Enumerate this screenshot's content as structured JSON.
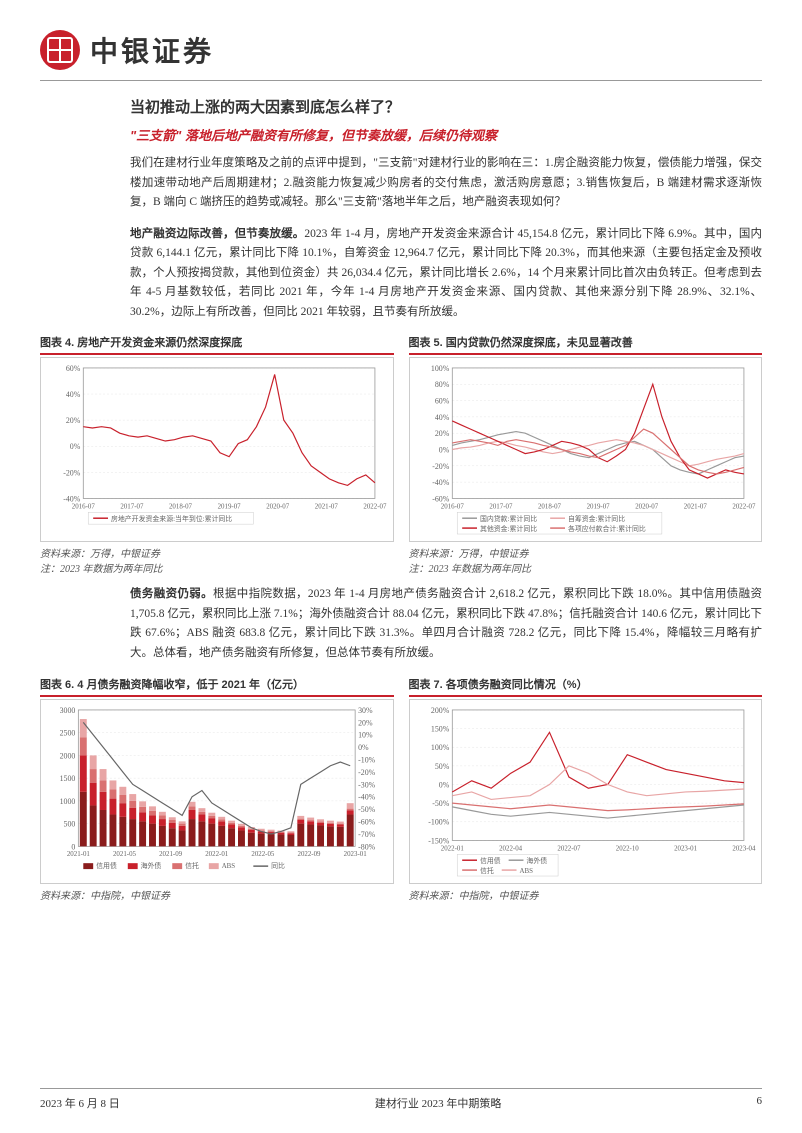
{
  "brand": "中银证券",
  "section_title": "当初推动上涨的两大因素到底怎么样了？",
  "subtitle": "\"三支箭\" 落地后地产融资有所修复，但节奏放缓，后续仍待观察",
  "para1": "我们在建材行业年度策略及之前的点评中提到，\"三支箭\"对建材行业的影响在三：1.房企融资能力恢复，偿债能力增强，保交楼加速带动地产后周期建材；2.融资能力恢复减少购房者的交付焦虑，激活购房意愿；3.销售恢复后，B 端建材需求逐渐恢复，B 端向 C 端挤压的趋势或减轻。那么\"三支箭\"落地半年之后，地产融资表现如何？",
  "para2_lead": "地产融资边际改善，但节奏放缓。",
  "para2": "2023 年 1-4 月，房地产开发资金来源合计 45,154.8 亿元，累计同比下降 6.9%。其中，国内贷款 6,144.1 亿元，累计同比下降 10.1%，自筹资金 12,964.7 亿元，累计同比下降 20.3%，而其他来源（主要包括定金及预收款，个人预按揭贷款，其他到位资金）共 26,034.4 亿元，累计同比增长 2.6%，14 个月来累计同比首次由负转正。但考虑到去年 4-5 月基数较低，若同比 2021 年，今年 1-4 月房地产开发资金来源、国内贷款、其他来源分别下降 28.9%、32.1%、30.2%，边际上有所改善，但同比 2021 年较弱，且节奏有所放缓。",
  "para3_lead": "债务融资仍弱。",
  "para3": "根据中指院数据，2023 年 1-4 月房地产债务融资合计 2,618.2 亿元，累积同比下跌 18.0%。其中信用债融资 1,705.8 亿元，累积同比上涨 7.1%；海外债融资合计 88.04 亿元，累积同比下跌 47.8%；信托融资合计 140.6 亿元，累计同比下跌 67.6%；ABS 融资 683.8 亿元，累计同比下跌 31.3%。单四月合计融资 728.2 亿元，同比下降 15.4%，降幅较三月略有扩大。总体看，地产债务融资有所修复，但总体节奏有所放缓。",
  "chart4": {
    "title": "图表 4. 房地产开发资金来源仍然深度探底",
    "source": "资料来源：万得，中银证券",
    "note": "注：2023 年数据为两年同比",
    "type": "line",
    "ylim": [
      -40,
      60
    ],
    "ytick_step": 20,
    "x_labels": [
      "2016-07",
      "2017-07",
      "2018-07",
      "2019-07",
      "2020-07",
      "2021-07",
      "2022-07"
    ],
    "series": [
      {
        "name": "房地产开发资金来源:当年到位:累计同比",
        "color": "#c8202b",
        "values": [
          15,
          14,
          15,
          14,
          10,
          8,
          7,
          8,
          6,
          4,
          5,
          7,
          8,
          6,
          4,
          -5,
          -8,
          2,
          5,
          15,
          30,
          55,
          20,
          10,
          -5,
          -15,
          -20,
          -25,
          -28,
          -30,
          -25,
          -22,
          -28
        ]
      }
    ],
    "grid_color": "#e5e5e5",
    "label_fontsize": 8
  },
  "chart5": {
    "title": "图表 5. 国内贷款仍然深度探底，未见显著改善",
    "source": "资料来源：万得，中银证券",
    "note": "注：2023 年数据为两年同比",
    "type": "line",
    "ylim": [
      -60,
      100
    ],
    "ytick_step": 20,
    "x_labels": [
      "2016-07",
      "2017-07",
      "2018-07",
      "2019-07",
      "2020-07",
      "2021-07",
      "2022-07"
    ],
    "series": [
      {
        "name": "国内贷款:累计同比",
        "color": "#999999",
        "values": [
          5,
          8,
          10,
          12,
          15,
          18,
          20,
          22,
          20,
          15,
          10,
          5,
          0,
          -5,
          -8,
          -10,
          -5,
          0,
          5,
          8,
          10,
          5,
          0,
          -10,
          -20,
          -25,
          -28,
          -30,
          -25,
          -20,
          -15,
          -10,
          -8
        ]
      },
      {
        "name": "自筹资金:累计同比",
        "color": "#e8a5a5",
        "values": [
          0,
          2,
          3,
          5,
          8,
          10,
          8,
          5,
          3,
          0,
          -3,
          -5,
          -3,
          0,
          3,
          5,
          8,
          10,
          12,
          10,
          8,
          5,
          0,
          -5,
          -10,
          -15,
          -20,
          -18,
          -15,
          -12,
          -10,
          -8,
          -5
        ]
      },
      {
        "name": "其他资金:累计同比",
        "color": "#c8202b",
        "values": [
          35,
          30,
          25,
          20,
          15,
          10,
          5,
          0,
          -5,
          -3,
          0,
          5,
          10,
          8,
          5,
          0,
          -10,
          -15,
          -8,
          0,
          20,
          50,
          80,
          40,
          10,
          -10,
          -25,
          -30,
          -35,
          -30,
          -25,
          -28,
          -30
        ]
      },
      {
        "name": "各项应付款合计:累计同比",
        "color": "#d97070",
        "values": [
          8,
          10,
          12,
          10,
          8,
          5,
          10,
          12,
          10,
          8,
          5,
          3,
          0,
          -3,
          -5,
          -8,
          -10,
          -5,
          0,
          5,
          15,
          25,
          20,
          10,
          0,
          -10,
          -20,
          -25,
          -28,
          -30,
          -28,
          -25,
          -22
        ]
      }
    ],
    "grid_color": "#e5e5e5",
    "label_fontsize": 8
  },
  "chart6": {
    "title": "图表 6. 4 月债务融资降幅收窄，低于 2021 年（亿元）",
    "source": "资料来源：中指院，中银证券",
    "type": "bar_line",
    "ylim_left": [
      0,
      3000
    ],
    "ytick_left_step": 500,
    "ylim_right": [
      -80,
      30
    ],
    "ytick_right_step": 10,
    "x_labels": [
      "2021-01",
      "2021-05",
      "2021-09",
      "2022-01",
      "2022-05",
      "2022-09",
      "2023-01"
    ],
    "stacks": [
      {
        "name": "信用债",
        "color": "#8a1c1c"
      },
      {
        "name": "海外债",
        "color": "#c8202b"
      },
      {
        "name": "信托",
        "color": "#d97070"
      },
      {
        "name": "ABS",
        "color": "#e8a5a5"
      }
    ],
    "bars": [
      [
        1200,
        800,
        400,
        400
      ],
      [
        900,
        500,
        300,
        300
      ],
      [
        800,
        400,
        250,
        250
      ],
      [
        700,
        350,
        200,
        200
      ],
      [
        650,
        300,
        180,
        180
      ],
      [
        600,
        250,
        150,
        150
      ],
      [
        550,
        200,
        120,
        120
      ],
      [
        500,
        180,
        100,
        100
      ],
      [
        450,
        150,
        80,
        80
      ],
      [
        400,
        120,
        60,
        60
      ],
      [
        350,
        100,
        50,
        50
      ],
      [
        600,
        200,
        80,
        100
      ],
      [
        550,
        150,
        60,
        80
      ],
      [
        500,
        120,
        50,
        70
      ],
      [
        450,
        100,
        40,
        60
      ],
      [
        400,
        80,
        35,
        50
      ],
      [
        350,
        70,
        30,
        45
      ],
      [
        300,
        60,
        25,
        40
      ],
      [
        280,
        50,
        22,
        35
      ],
      [
        270,
        45,
        20,
        32
      ],
      [
        260,
        40,
        18,
        30
      ],
      [
        250,
        38,
        16,
        28
      ],
      [
        500,
        80,
        30,
        60
      ],
      [
        480,
        70,
        28,
        55
      ],
      [
        460,
        60,
        25,
        50
      ],
      [
        440,
        55,
        22,
        48
      ],
      [
        430,
        50,
        20,
        45
      ],
      [
        700,
        90,
        40,
        120
      ]
    ],
    "line": {
      "name": "同比",
      "color": "#666666",
      "values": [
        20,
        10,
        0,
        -10,
        -20,
        -30,
        -35,
        -40,
        -45,
        -50,
        -55,
        -40,
        -35,
        -45,
        -50,
        -55,
        -60,
        -65,
        -68,
        -70,
        -68,
        -65,
        -30,
        -25,
        -20,
        -15,
        -12,
        -15
      ]
    },
    "grid_color": "#e5e5e5",
    "label_fontsize": 8
  },
  "chart7": {
    "title": "图表 7. 各项债务融资同比情况（%）",
    "source": "资料来源：中指院，中银证券",
    "type": "line",
    "ylim": [
      -150,
      200
    ],
    "ytick_step": 50,
    "x_labels": [
      "2022-01",
      "2022-04",
      "2022-07",
      "2022-10",
      "2023-01",
      "2023-04"
    ],
    "series": [
      {
        "name": "信用债",
        "color": "#c8202b",
        "values": [
          -20,
          10,
          -10,
          30,
          60,
          140,
          20,
          -10,
          0,
          80,
          60,
          40,
          30,
          20,
          10,
          5
        ]
      },
      {
        "name": "海外债",
        "color": "#999999",
        "values": [
          -60,
          -70,
          -80,
          -85,
          -80,
          -75,
          -80,
          -85,
          -90,
          -85,
          -80,
          -75,
          -70,
          -65,
          -60,
          -55
        ]
      },
      {
        "name": "信托",
        "color": "#d97070",
        "values": [
          -50,
          -55,
          -60,
          -65,
          -60,
          -55,
          -60,
          -65,
          -70,
          -68,
          -65,
          -62,
          -60,
          -58,
          -55,
          -52
        ]
      },
      {
        "name": "ABS",
        "color": "#e8a5a5",
        "values": [
          -30,
          -20,
          -40,
          -35,
          -30,
          0,
          50,
          30,
          0,
          -20,
          -30,
          -25,
          -20,
          -18,
          -15,
          -12
        ]
      }
    ],
    "grid_color": "#e5e5e5",
    "label_fontsize": 8
  },
  "footer": {
    "date": "2023 年 6 月 8 日",
    "doc": "建材行业 2023 年中期策略",
    "page": "6"
  }
}
